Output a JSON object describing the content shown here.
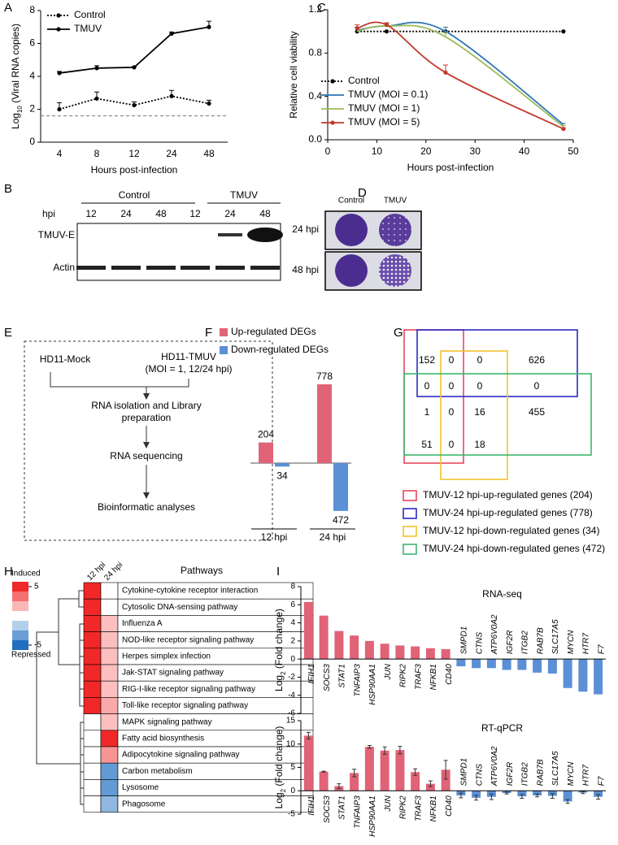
{
  "chart_data": [
    {
      "panel": "A",
      "type": "line",
      "categories": [
        "4",
        "8",
        "12",
        "24",
        "48"
      ],
      "xlabel": "Hours post-infection",
      "ylabel": [
        "Log",
        "10",
        " (Viral RNA copies)"
      ],
      "ylim": [
        0,
        8
      ],
      "yticks": [
        0,
        2,
        4,
        6,
        8
      ],
      "reference_line": 1.6,
      "legend_position": "upper left",
      "series": [
        {
          "name": "Control",
          "color": "#000000",
          "dash": "dotted",
          "marker": true,
          "values": [
            2.0,
            2.65,
            2.25,
            2.8,
            2.35
          ],
          "errors": [
            0.4,
            0.4,
            0.2,
            0.35,
            0.2
          ]
        },
        {
          "name": "TMUV",
          "color": "#000000",
          "dash": "solid",
          "marker": true,
          "values": [
            4.2,
            4.5,
            4.55,
            6.6,
            7.0
          ],
          "errors": [
            0.1,
            0.15,
            0.05,
            0.1,
            0.35
          ]
        }
      ]
    },
    {
      "panel": "C",
      "type": "line",
      "smooth": true,
      "x": [
        6,
        12,
        24,
        48
      ],
      "xlim": [
        0,
        50
      ],
      "xticks": [
        0,
        10,
        20,
        30,
        40,
        50
      ],
      "xlabel": "Hours post-infection",
      "ylabel": "Relative cell viability",
      "ylim": [
        0,
        1.2
      ],
      "yticks": [
        {
          "value": 0,
          "label": "0.0"
        },
        0.4,
        0.8,
        1.2
      ],
      "legend_position": "center left",
      "series": [
        {
          "name": "Control",
          "color": "#000000",
          "dash": "dotted",
          "marker": true,
          "values": [
            1,
            1,
            1,
            1
          ]
        },
        {
          "name": "TMUV (MOI = 0.1)",
          "color": "#2e75b6",
          "dash": "solid",
          "marker": false,
          "values": [
            1.01,
            1.05,
            1.0,
            0.14
          ],
          "errors": [
            0.03,
            0.02,
            0.04,
            0.01
          ]
        },
        {
          "name": "TMUV (MOI = 1)",
          "color": "#9bbb59",
          "dash": "solid",
          "marker": false,
          "values": [
            1.0,
            1.05,
            0.95,
            0.12
          ],
          "errors": [
            0.03,
            0.02,
            0.04,
            0.01
          ]
        },
        {
          "name": "TMUV (MOI = 5)",
          "color": "#c0392b",
          "dash": "solid",
          "marker": true,
          "values": [
            1.03,
            1.06,
            0.62,
            0.1
          ],
          "errors": [
            0.03,
            0.02,
            0.07,
            0.01
          ]
        }
      ]
    },
    {
      "panel": "F",
      "type": "bar",
      "categories": [
        "12 hpi",
        "24 hpi"
      ],
      "series": [
        {
          "name": "Up-regulated DEGs",
          "color": "#e06377",
          "direction": "up",
          "values": [
            204,
            778
          ]
        },
        {
          "name": "Down-regulated DEGs",
          "color": "#5b8fd6",
          "direction": "down",
          "values": [
            34,
            472
          ]
        }
      ]
    },
    {
      "panel": "H",
      "type": "heatmap",
      "columns": [
        "12 hpi",
        "24 hpi"
      ],
      "rows_title": "Pathways",
      "rows": [
        "Cytokine-cytokine receptor interaction",
        "Cytosolic DNA-sensing pathway",
        "Influenza A",
        "NOD-like receptor signaling pathway",
        "Herpes simplex infection",
        "Jak-STAT signaling pathway",
        "RIG-I-like receptor signaling pathway",
        "Toll-like receptor signaling pathway",
        "MAPK signaling pathway",
        "Fatty acid biosynthesis",
        "Adipocytokine signaling pathway",
        "Carbon metabolism",
        "Lysosome",
        "Phagosome"
      ],
      "values": [
        [
          5,
          0
        ],
        [
          5,
          0
        ],
        [
          5,
          1.5
        ],
        [
          5,
          1.5
        ],
        [
          5,
          1.5
        ],
        [
          5,
          1.5
        ],
        [
          5,
          1.5
        ],
        [
          5,
          2
        ],
        [
          0,
          1.5
        ],
        [
          0,
          5
        ],
        [
          0,
          2.5
        ],
        [
          0,
          -3.5
        ],
        [
          0,
          -3.5
        ],
        [
          0,
          -2.5
        ]
      ],
      "zlim": [
        -5,
        5
      ],
      "colors": {
        "high": "#f02828",
        "low": "#1f6fc0"
      },
      "colorbar": {
        "high_label": "Induced",
        "low_label": "Repressed",
        "ticks": [
          5,
          -5
        ]
      }
    },
    {
      "panel": "I",
      "type": "bar",
      "title": "RNA-seq",
      "categories": [
        "IFIH1",
        "SOCS3",
        "STAT1",
        "TNFAIP3",
        "HSP90AA1",
        "JUN",
        "RIPK2",
        "TRAF3",
        "NFKB1",
        "CD40",
        "SMPD1",
        "CTNS",
        "ATP6V0A2",
        "IGF2R",
        "ITGB2",
        "RAB7B",
        "SLC17A5",
        "MYCN",
        "HTR7",
        "F7"
      ],
      "values": [
        6.3,
        4.8,
        3.1,
        2.6,
        2.0,
        1.7,
        1.5,
        1.4,
        1.2,
        1.1,
        -0.8,
        -1.0,
        -1.0,
        -1.2,
        -1.2,
        -1.5,
        -1.6,
        -3.2,
        -3.6,
        -3.9
      ],
      "ylabel": [
        "Log",
        "2",
        " (Fold change)"
      ],
      "ylim": [
        -6,
        8
      ],
      "yticks": [
        -6,
        -4,
        -2,
        0,
        2,
        4,
        6,
        8
      ],
      "color_positive": "#e06377",
      "color_negative": "#5b8fd6"
    },
    {
      "type": "bar",
      "title": "RT-qPCR",
      "categories": [
        "IFIH1",
        "SOCS3",
        "STAT1",
        "TNFAIP3",
        "HSP90AA1",
        "JUN",
        "RIPK2",
        "TRAF3",
        "NFKB1",
        "CD40",
        "SMPD1",
        "CTNS",
        "ATP6V0A2",
        "IGF2R",
        "ITGB2",
        "RAB7B",
        "SLC17A5",
        "MYCN",
        "HTR7",
        "F7"
      ],
      "values": [
        11.8,
        4.1,
        1.0,
        3.8,
        9.4,
        8.6,
        8.7,
        4.0,
        1.5,
        4.5,
        -1.0,
        -1.5,
        -1.3,
        -0.5,
        -1.2,
        -1.0,
        -1.1,
        -2.3,
        -0.4,
        -1.3
      ],
      "errors": [
        0.7,
        0.1,
        0.5,
        0.8,
        0.3,
        0.8,
        0.8,
        0.7,
        0.6,
        2.0,
        0.5,
        0.5,
        0.6,
        0.2,
        0.4,
        0.3,
        0.5,
        0.4,
        0.2,
        0.5
      ],
      "ylabel": [
        "Log",
        "2",
        " (Fold change)"
      ],
      "ylim": [
        -5,
        15
      ],
      "yticks": [
        -5,
        0,
        5,
        10,
        15
      ],
      "color_positive": "#e06377",
      "color_negative": "#5b8fd6"
    }
  ],
  "blot": {
    "panel": "B",
    "groups": [
      "Control",
      "TMUV"
    ],
    "lane_header": "hpi",
    "lanes": [
      "12",
      "24",
      "48",
      "12",
      "24",
      "48"
    ],
    "rows": [
      "TMUV-E",
      "Actin"
    ]
  },
  "plaque": {
    "panel": "D",
    "columns": [
      "Control",
      "TMUV"
    ],
    "rows": [
      "24 hpi",
      "48 hpi"
    ]
  },
  "flowchart": {
    "panel": "E",
    "nodes": [
      {
        "lines": [
          "HD11-Mock"
        ]
      },
      {
        "lines": [
          "HD11-TMUV",
          "(MOI = 1, 12/24 hpi)"
        ]
      },
      {
        "lines": [
          "RNA isolation and Library",
          "preparation"
        ]
      },
      {
        "lines": [
          "RNA sequencing"
        ]
      },
      {
        "lines": [
          "Bioinformatic analyses"
        ]
      }
    ]
  },
  "venn": {
    "panel": "G",
    "counts": [
      [
        152,
        0,
        0,
        626
      ],
      [
        0,
        0,
        0,
        0
      ],
      [
        1,
        0,
        16,
        455
      ],
      [
        51,
        0,
        18
      ]
    ],
    "sets": [
      {
        "name": "TMUV-12 hpi-up-regulated genes (204)",
        "color": "#e8475f"
      },
      {
        "name": "TMUV-24 hpi-up-regulated genes (778)",
        "color": "#2b2bc4"
      },
      {
        "name": "TMUV-12 hpi-down-regulated genes (34)",
        "color": "#f2c12e"
      },
      {
        "name": "TMUV-24 hpi-down-regulated genes (472)",
        "color": "#3cb66e"
      }
    ]
  }
}
